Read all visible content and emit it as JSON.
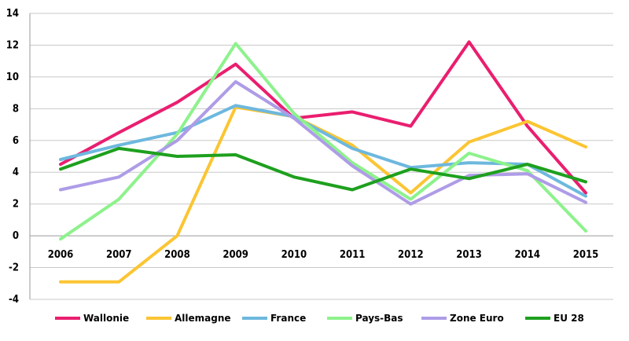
{
  "chart_data": {
    "type": "line",
    "categories": [
      "2006",
      "2007",
      "2008",
      "2009",
      "2010",
      "2011",
      "2012",
      "2013",
      "2014",
      "2015"
    ],
    "ylim": [
      -4,
      14
    ],
    "yticks": [
      "14",
      "12",
      "10",
      "8",
      "6",
      "4",
      "2",
      "0",
      "-2",
      "-4"
    ],
    "grid": true,
    "legend_position": "bottom",
    "series": [
      {
        "name": "Wallonie",
        "color": "#ea1e6f",
        "values": [
          4.5,
          6.5,
          8.4,
          10.8,
          7.4,
          7.8,
          6.9,
          12.2,
          6.9,
          2.7
        ]
      },
      {
        "name": "Allemagne",
        "color": "#fbc533",
        "values": [
          -2.9,
          -2.9,
          0.0,
          8.1,
          7.5,
          5.7,
          2.7,
          5.9,
          7.2,
          5.6
        ]
      },
      {
        "name": "France",
        "color": "#6db8de",
        "values": [
          4.8,
          5.7,
          6.5,
          8.2,
          7.5,
          5.5,
          4.3,
          4.6,
          4.5,
          2.5
        ]
      },
      {
        "name": "Pays-Bas",
        "color": "#8df28c",
        "values": [
          -0.2,
          2.3,
          6.4,
          12.1,
          7.7,
          4.6,
          2.3,
          5.2,
          4.1,
          0.3
        ]
      },
      {
        "name": "Zone Euro",
        "color": "#ae9ce7",
        "values": [
          2.9,
          3.7,
          6.0,
          9.7,
          7.4,
          4.4,
          2.0,
          3.8,
          3.9,
          2.1
        ]
      },
      {
        "name": "EU 28",
        "color": "#1ea01e",
        "values": [
          4.2,
          5.5,
          5.0,
          5.1,
          3.7,
          2.9,
          4.2,
          3.6,
          4.5,
          3.4
        ]
      }
    ]
  }
}
